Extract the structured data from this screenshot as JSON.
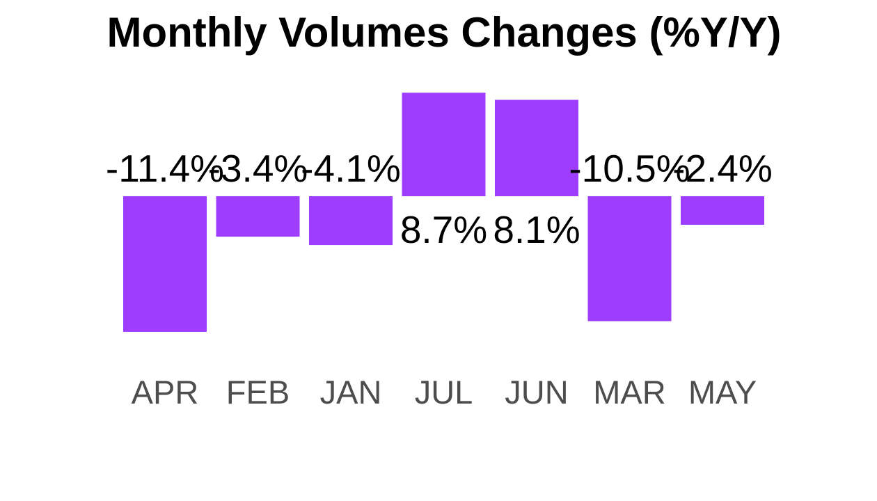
{
  "chart_data": {
    "type": "bar",
    "title": "Monthly Volumes Changes (%Y/Y)",
    "xlabel": "",
    "ylabel": "",
    "categories": [
      "APR",
      "FEB",
      "JAN",
      "JUL",
      "JUN",
      "MAR",
      "MAY"
    ],
    "values": [
      -11.4,
      -3.4,
      -4.1,
      8.7,
      8.1,
      -10.5,
      -2.4
    ],
    "data_labels": [
      "-11.4%",
      "-3.4%",
      "-4.1%",
      "8.7%",
      "8.1%",
      "-10.5%",
      "-2.4%"
    ],
    "ylim": [
      -11.4,
      8.7
    ],
    "grid": false,
    "legend": "none",
    "bar_color": "#9f3dfe"
  }
}
